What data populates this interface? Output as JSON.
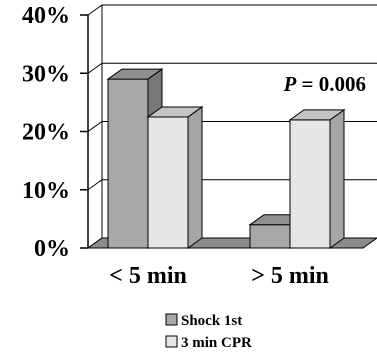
{
  "chart_data": {
    "type": "bar",
    "title": "",
    "xlabel": "",
    "ylabel": "",
    "categories": [
      "< 5 min",
      "> 5 min"
    ],
    "series": [
      {
        "name": "Shock 1st",
        "values": [
          29,
          4
        ],
        "color": "#a8a8a8"
      },
      {
        "name": "3 min CPR",
        "values": [
          22.5,
          22
        ],
        "color": "#e6e6e6"
      }
    ],
    "y_ticks": [
      "0%",
      "10%",
      "20%",
      "30%",
      "40%"
    ],
    "ylim": [
      0,
      40
    ],
    "grid": true,
    "style": "3d",
    "legend_position": "bottom",
    "annotation": {
      "prefix": "P",
      "text": " = 0.006"
    }
  }
}
